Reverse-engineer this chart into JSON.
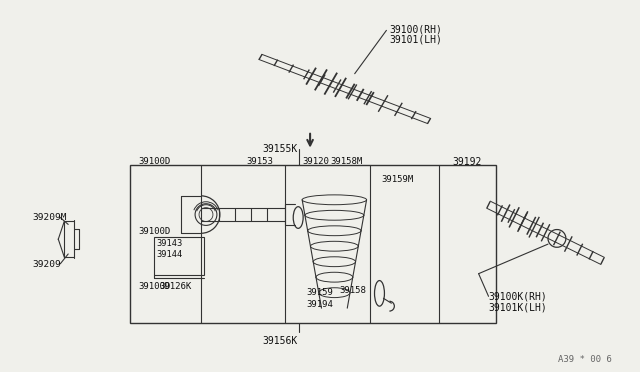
{
  "background_color": "#f0f0eb",
  "line_color": "#333333",
  "text_color": "#111111",
  "watermark": "A39 * 00 6",
  "labels": {
    "top_rh": "39100(RH)",
    "top_lh": "39101(LH)",
    "box_top": "39155K",
    "box_bot": "39156K",
    "p39192": "39192",
    "p39209M": "39209M",
    "p39209": "39209",
    "p39100D_a": "39100D",
    "p39100D_b": "39100D",
    "p39100D_c": "39100D",
    "p39153": "39153",
    "p39143": "39143",
    "p39144": "39144",
    "p39126K": "39126K",
    "p39120": "39120",
    "p39158M": "39158M",
    "p39159M": "39159M",
    "p39159": "39159",
    "p39194": "39194",
    "p39158": "39158",
    "bot_rh": "39100K(RH)",
    "bot_lh": "39101K(LH)"
  }
}
